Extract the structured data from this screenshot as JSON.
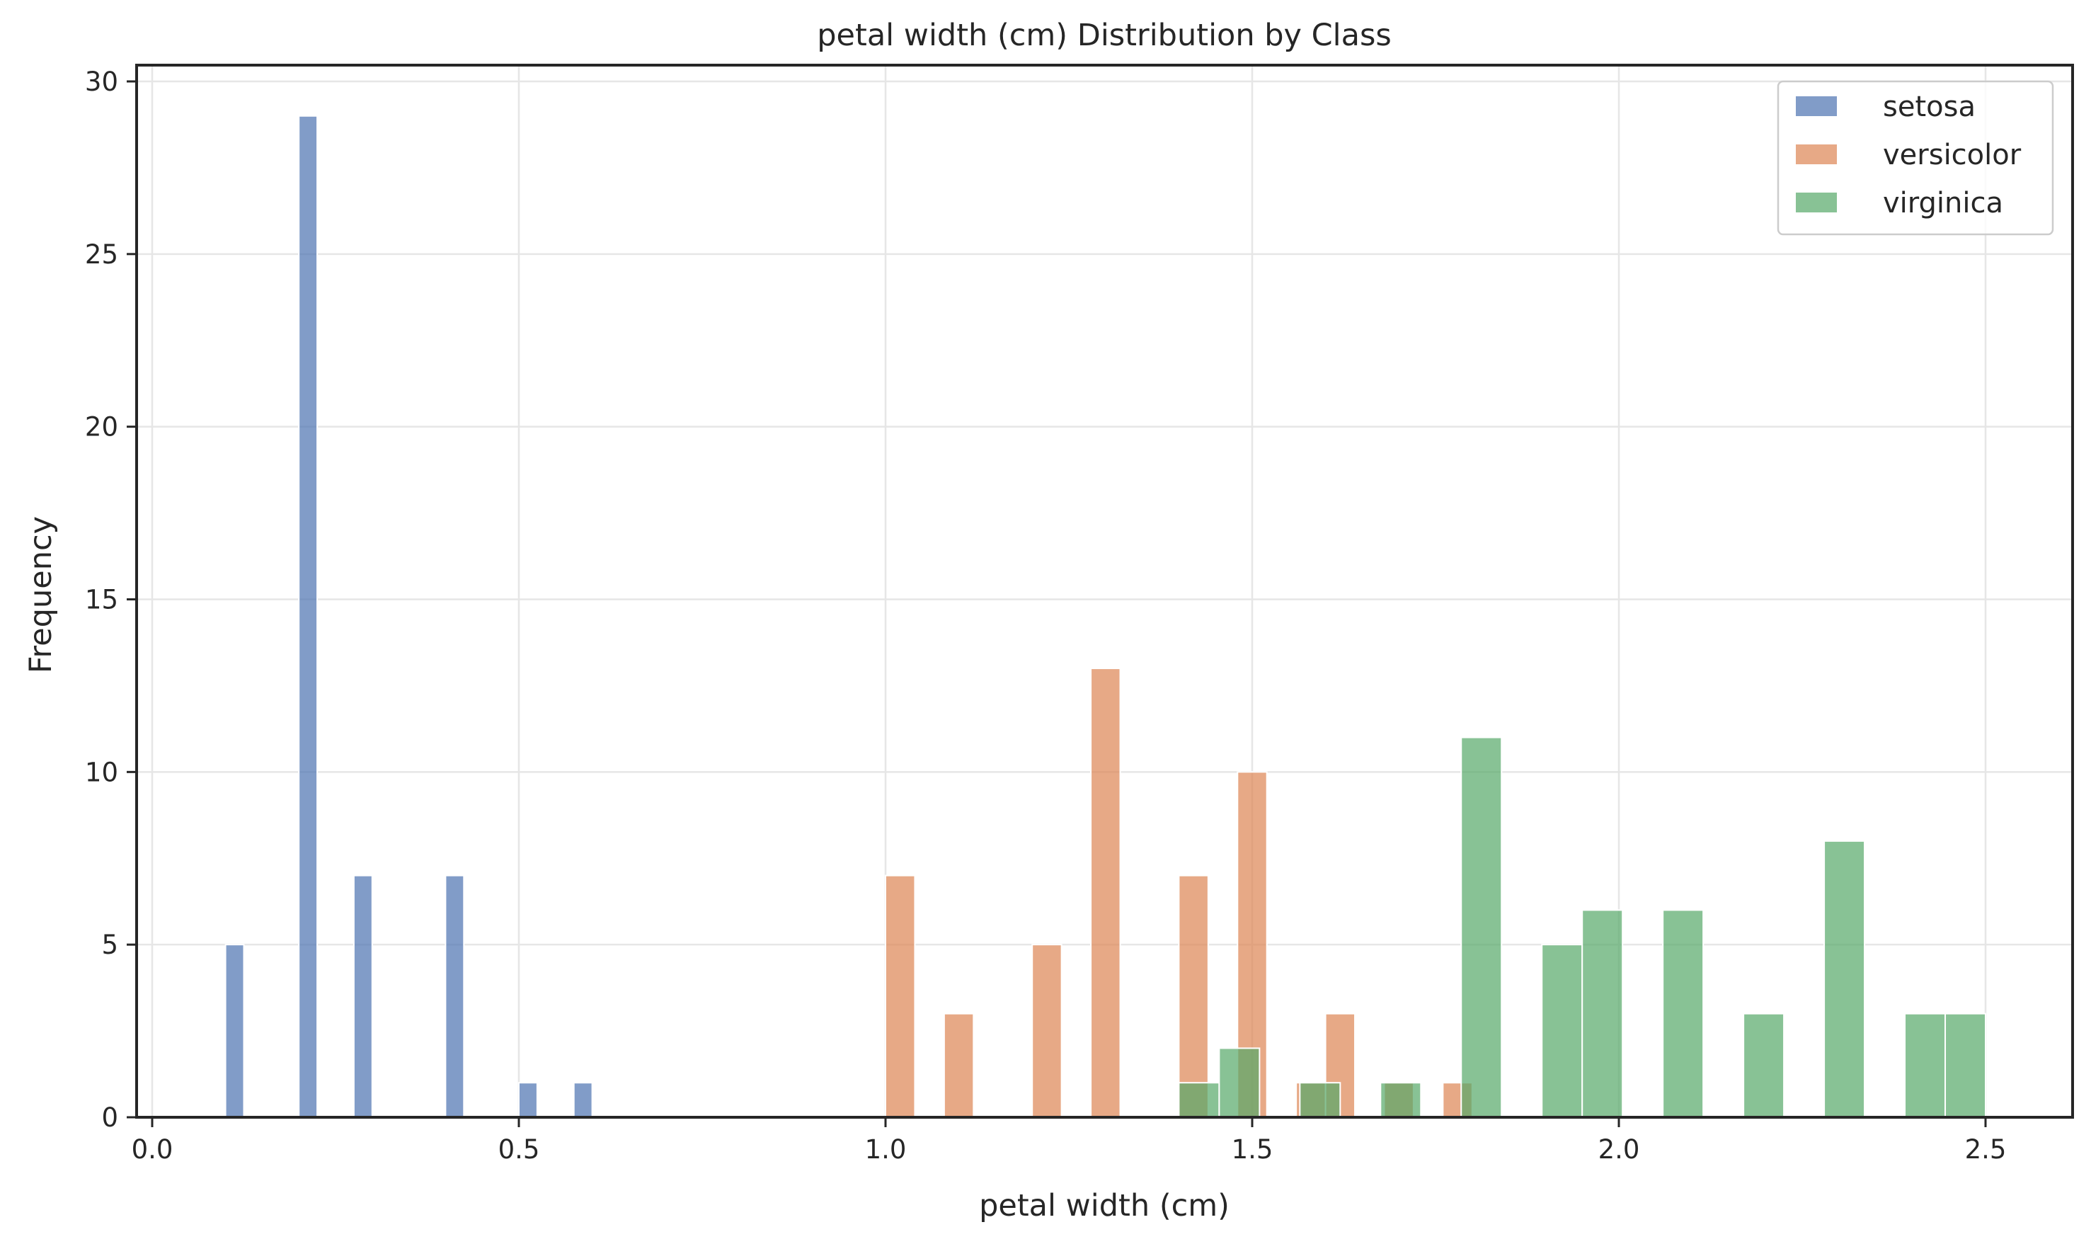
{
  "chart_data": {
    "type": "bar",
    "chart_kind": "overlapping histogram",
    "title": "petal width (cm) Distribution by Class",
    "xlabel": "petal width (cm)",
    "ylabel": "Frequency",
    "xlim": [
      -0.02,
      2.62
    ],
    "ylim": [
      0,
      30.5
    ],
    "xticks": [
      0.0,
      0.5,
      1.0,
      1.5,
      2.0,
      2.5
    ],
    "xtick_labels": [
      "0.0",
      "0.5",
      "1.0",
      "1.5",
      "2.0",
      "2.5"
    ],
    "yticks": [
      0,
      5,
      10,
      15,
      20,
      25,
      30
    ],
    "ytick_labels": [
      "0",
      "5",
      "10",
      "15",
      "20",
      "25",
      "30"
    ],
    "grid": true,
    "legend_position": "top-right",
    "bar_opacity": 0.7,
    "series": [
      {
        "name": "setosa",
        "color": "#4c72b0",
        "bin_width": 0.025,
        "bins": [
          {
            "x0": 0.1,
            "x1": 0.125,
            "count": 5
          },
          {
            "x0": 0.2,
            "x1": 0.225,
            "count": 29
          },
          {
            "x0": 0.275,
            "x1": 0.3,
            "count": 7
          },
          {
            "x0": 0.4,
            "x1": 0.425,
            "count": 7
          },
          {
            "x0": 0.5,
            "x1": 0.525,
            "count": 1
          },
          {
            "x0": 0.575,
            "x1": 0.6,
            "count": 1
          }
        ]
      },
      {
        "name": "versicolor",
        "color": "#dd8452",
        "bin_width": 0.04,
        "bins": [
          {
            "x0": 1.0,
            "x1": 1.04,
            "count": 7
          },
          {
            "x0": 1.08,
            "x1": 1.12,
            "count": 3
          },
          {
            "x0": 1.2,
            "x1": 1.24,
            "count": 5
          },
          {
            "x0": 1.28,
            "x1": 1.32,
            "count": 13
          },
          {
            "x0": 1.4,
            "x1": 1.44,
            "count": 7
          },
          {
            "x0": 1.48,
            "x1": 1.52,
            "count": 10
          },
          {
            "x0": 1.56,
            "x1": 1.6,
            "count": 1
          },
          {
            "x0": 1.6,
            "x1": 1.64,
            "count": 3
          },
          {
            "x0": 1.68,
            "x1": 1.72,
            "count": 1
          },
          {
            "x0": 1.76,
            "x1": 1.8,
            "count": 1
          }
        ]
      },
      {
        "name": "virginica",
        "color": "#55a868",
        "bin_width": 0.055,
        "bins": [
          {
            "x0": 1.4,
            "x1": 1.455,
            "count": 1
          },
          {
            "x0": 1.455,
            "x1": 1.51,
            "count": 2
          },
          {
            "x0": 1.565,
            "x1": 1.62,
            "count": 1
          },
          {
            "x0": 1.675,
            "x1": 1.73,
            "count": 1
          },
          {
            "x0": 1.785,
            "x1": 1.84,
            "count": 11
          },
          {
            "x0": 1.895,
            "x1": 1.95,
            "count": 5
          },
          {
            "x0": 1.95,
            "x1": 2.005,
            "count": 6
          },
          {
            "x0": 2.06,
            "x1": 2.115,
            "count": 6
          },
          {
            "x0": 2.17,
            "x1": 2.225,
            "count": 3
          },
          {
            "x0": 2.28,
            "x1": 2.335,
            "count": 8
          },
          {
            "x0": 2.39,
            "x1": 2.445,
            "count": 3
          },
          {
            "x0": 2.445,
            "x1": 2.5,
            "count": 3
          }
        ]
      }
    ]
  }
}
